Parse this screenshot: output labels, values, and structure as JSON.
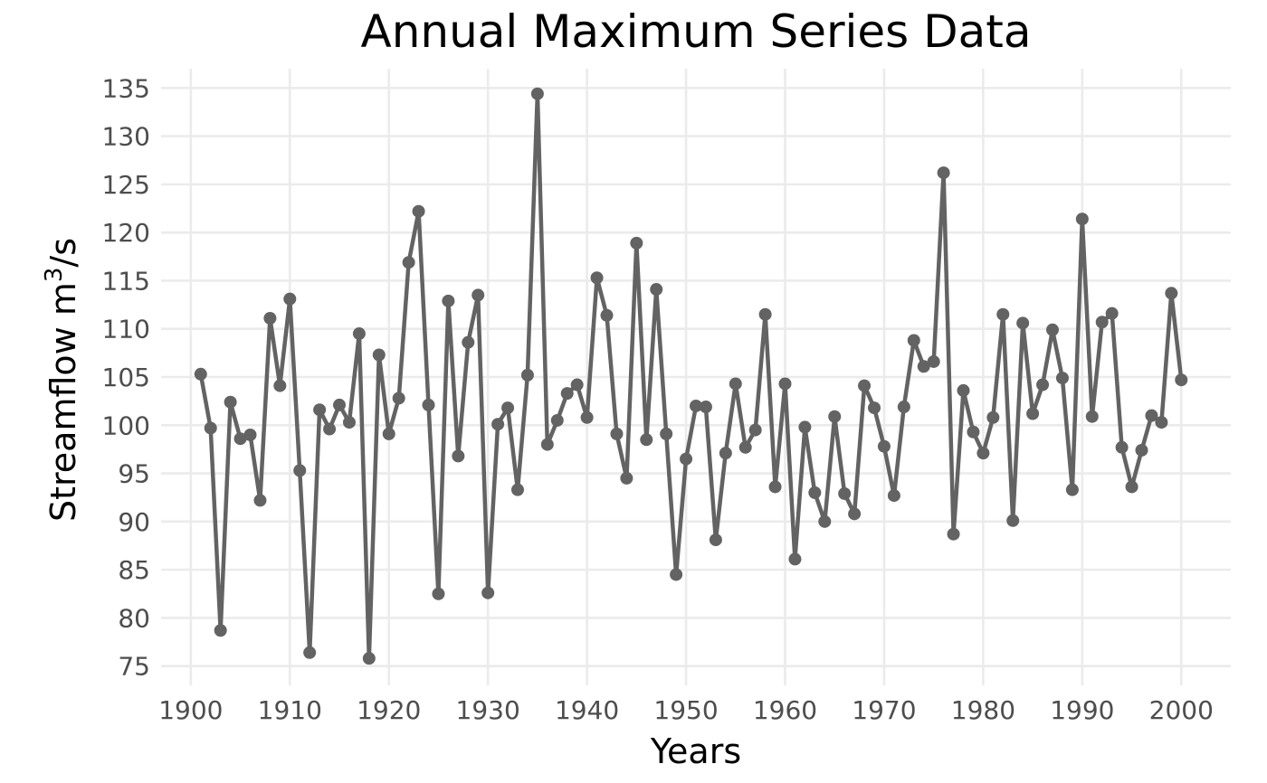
{
  "chart_data": {
    "type": "line",
    "title": "Annual Maximum Series Data",
    "xlabel": "Years",
    "ylabel_main": "Streamflow m",
    "ylabel_sup": "3",
    "ylabel_unit": "/s",
    "xlim": [
      1897,
      2005
    ],
    "ylim": [
      73,
      137
    ],
    "x_ticks": [
      1900,
      1910,
      1920,
      1930,
      1940,
      1950,
      1960,
      1970,
      1980,
      1990,
      2000
    ],
    "y_ticks": [
      75,
      80,
      85,
      90,
      95,
      100,
      105,
      110,
      115,
      120,
      125,
      130,
      135
    ],
    "grid": true,
    "colors": {
      "series": "#636363",
      "grid": "#ebebeb",
      "tick_text": "#4d4d4d"
    },
    "x": [
      1901,
      1902,
      1903,
      1904,
      1905,
      1906,
      1907,
      1908,
      1909,
      1910,
      1911,
      1912,
      1913,
      1914,
      1915,
      1916,
      1917,
      1918,
      1919,
      1920,
      1921,
      1922,
      1923,
      1924,
      1925,
      1926,
      1927,
      1928,
      1929,
      1930,
      1931,
      1932,
      1933,
      1934,
      1935,
      1936,
      1937,
      1938,
      1939,
      1940,
      1941,
      1942,
      1943,
      1944,
      1945,
      1946,
      1947,
      1948,
      1949,
      1950,
      1951,
      1952,
      1953,
      1954,
      1955,
      1956,
      1957,
      1958,
      1959,
      1960,
      1961,
      1962,
      1963,
      1964,
      1965,
      1966,
      1967,
      1968,
      1969,
      1970,
      1971,
      1972,
      1973,
      1974,
      1975,
      1976,
      1977,
      1978,
      1979,
      1980,
      1981,
      1982,
      1983,
      1984,
      1985,
      1986,
      1987,
      1988,
      1989,
      1990,
      1991,
      1992,
      1993,
      1994,
      1995,
      1996,
      1997,
      1998,
      1999,
      2000
    ],
    "values": [
      105.3,
      99.7,
      78.7,
      102.4,
      98.6,
      99.0,
      92.2,
      111.1,
      104.1,
      113.1,
      95.3,
      76.4,
      101.6,
      99.6,
      102.1,
      100.3,
      109.5,
      75.8,
      107.3,
      99.1,
      102.8,
      116.9,
      122.2,
      102.1,
      82.5,
      112.9,
      96.8,
      108.6,
      113.5,
      82.6,
      100.1,
      101.8,
      93.3,
      105.2,
      134.4,
      98.0,
      100.5,
      103.3,
      104.2,
      100.8,
      115.3,
      111.4,
      99.1,
      94.5,
      118.9,
      98.5,
      114.1,
      99.1,
      84.5,
      96.5,
      102.0,
      101.9,
      88.1,
      97.1,
      104.3,
      97.7,
      99.5,
      111.5,
      93.6,
      104.3,
      86.1,
      99.8,
      93.0,
      90.0,
      100.9,
      92.9,
      90.8,
      104.1,
      101.8,
      97.8,
      92.7,
      101.9,
      108.8,
      106.1,
      106.6,
      126.2,
      88.7,
      103.6,
      99.3,
      97.1,
      100.8,
      111.5,
      90.1,
      110.6,
      101.2,
      104.2,
      109.9,
      104.9,
      93.3,
      121.4,
      100.9,
      110.7,
      111.6,
      97.7,
      93.6,
      97.4,
      101.0,
      100.3,
      113.7,
      104.7
    ]
  }
}
